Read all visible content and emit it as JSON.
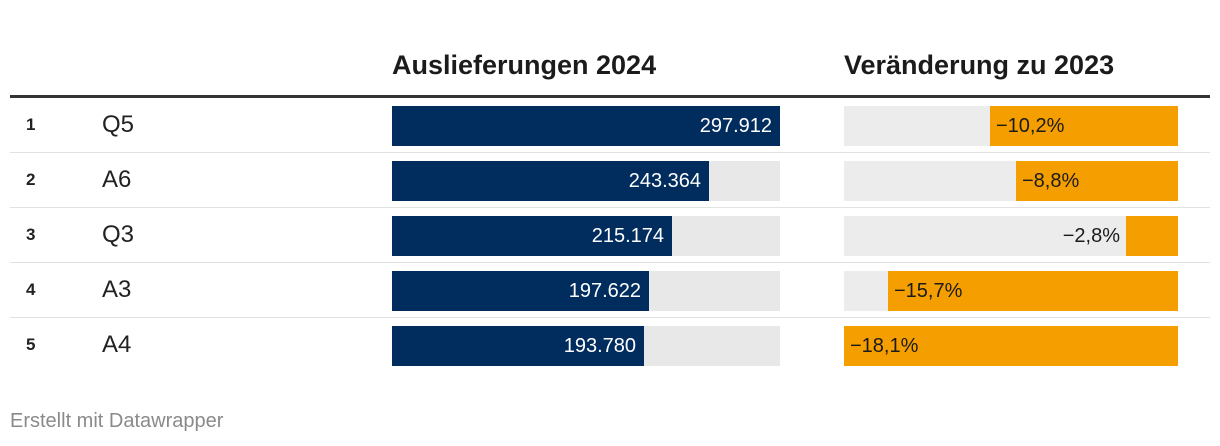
{
  "chart_data": {
    "type": "table",
    "columns": [
      "",
      "",
      "Auslieferungen 2024",
      "Veränderung zu 2023"
    ],
    "rows": [
      {
        "rank": "1",
        "model": "Q5",
        "deliveries": 297912,
        "deliveries_label": "297.912",
        "change": -10.2,
        "change_label": "−10,2%"
      },
      {
        "rank": "2",
        "model": "A6",
        "deliveries": 243364,
        "deliveries_label": "243.364",
        "change": -8.8,
        "change_label": "−8,8%"
      },
      {
        "rank": "3",
        "model": "Q3",
        "deliveries": 215174,
        "deliveries_label": "215.174",
        "change": -2.8,
        "change_label": "−2,8%"
      },
      {
        "rank": "4",
        "model": "A3",
        "deliveries": 197622,
        "deliveries_label": "197.622",
        "change": -15.7,
        "change_label": "−15,7%"
      },
      {
        "rank": "5",
        "model": "A4",
        "deliveries": 193780,
        "deliveries_label": "193.780",
        "change": -18.1,
        "change_label": "−18,1%"
      }
    ],
    "deliveries_max": 297912,
    "change_min": -18.1,
    "colors": {
      "deliveries_bar": "#002c5e",
      "change_bar": "#f59e00",
      "track": "#e8e8e8"
    }
  },
  "headers": {
    "deliveries": "Auslieferungen 2024",
    "change": "Veränderung zu 2023"
  },
  "footer": {
    "credit": "Erstellt mit Datawrapper"
  }
}
